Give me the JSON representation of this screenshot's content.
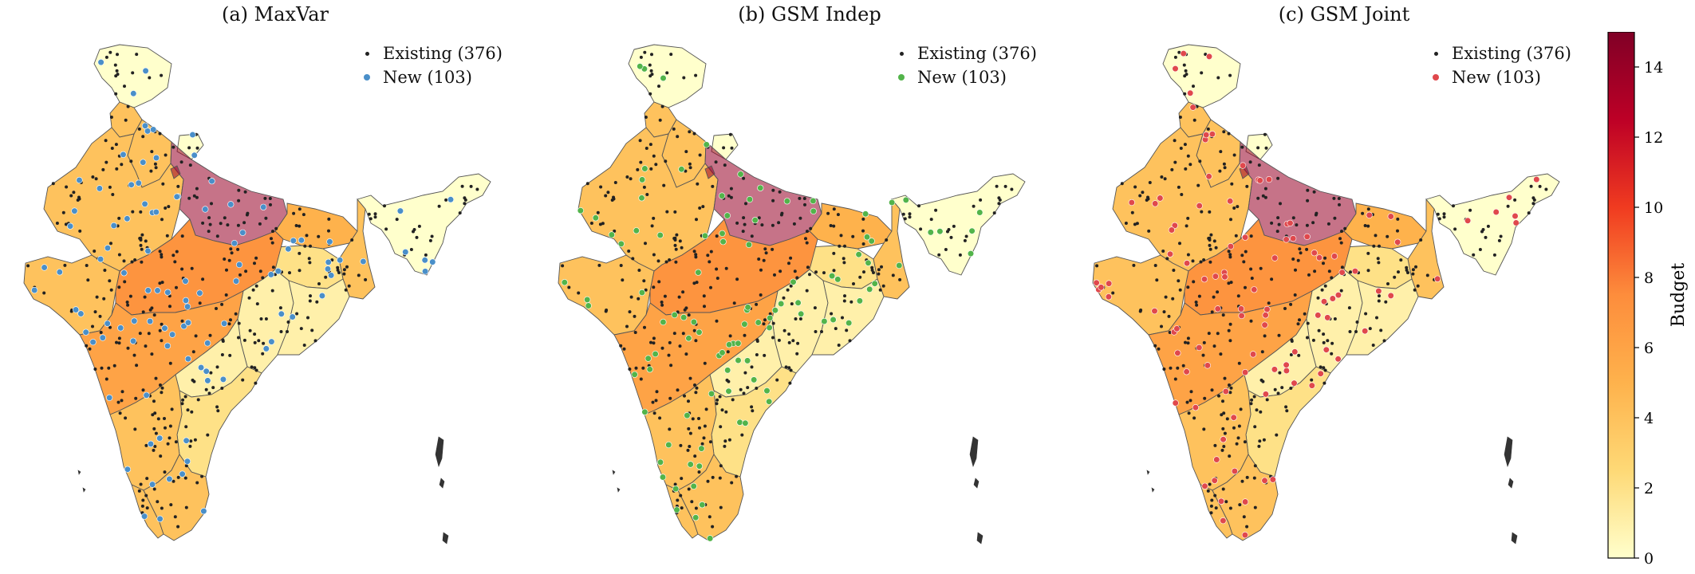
{
  "panels": [
    {
      "id": "a",
      "title": "(a) MaxVar",
      "new_color": "#4a8fc9",
      "legend": {
        "existing": "Existing (376)",
        "new": "New (103)"
      }
    },
    {
      "id": "b",
      "title": "(b) GSM Indep",
      "new_color": "#52b44a",
      "legend": {
        "existing": "Existing (376)",
        "new": "New (103)"
      }
    },
    {
      "id": "c",
      "title": "(c) GSM Joint",
      "new_color": "#e0484c",
      "legend": {
        "existing": "Existing (376)",
        "new": "New (103)"
      }
    }
  ],
  "colorbar": {
    "label": "Budget",
    "min": 0,
    "max": 15,
    "ticks": [
      "0",
      "2",
      "4",
      "6",
      "8",
      "10",
      "12",
      "14"
    ],
    "stops": [
      "#ffffcc",
      "#fed976",
      "#feb24c",
      "#fd8d3c",
      "#f03b20",
      "#bd0026",
      "#800026"
    ]
  },
  "region_budgets": {
    "north": 0,
    "punjab": 4,
    "haryana": 4,
    "delhi": 14,
    "rajasthan": 4,
    "uttar_pradesh": 14,
    "bihar": 5,
    "gujarat": 4,
    "madhya_pradesh": 7,
    "chhattisgarh": 1,
    "jharkhand": 2,
    "west_bengal": 4,
    "odisha": 1,
    "maharashtra": 6,
    "telangana": 1,
    "andhra_pradesh": 2,
    "karnataka": 4,
    "kerala": 4,
    "tamil_nadu": 4,
    "northeast": 0
  }
}
